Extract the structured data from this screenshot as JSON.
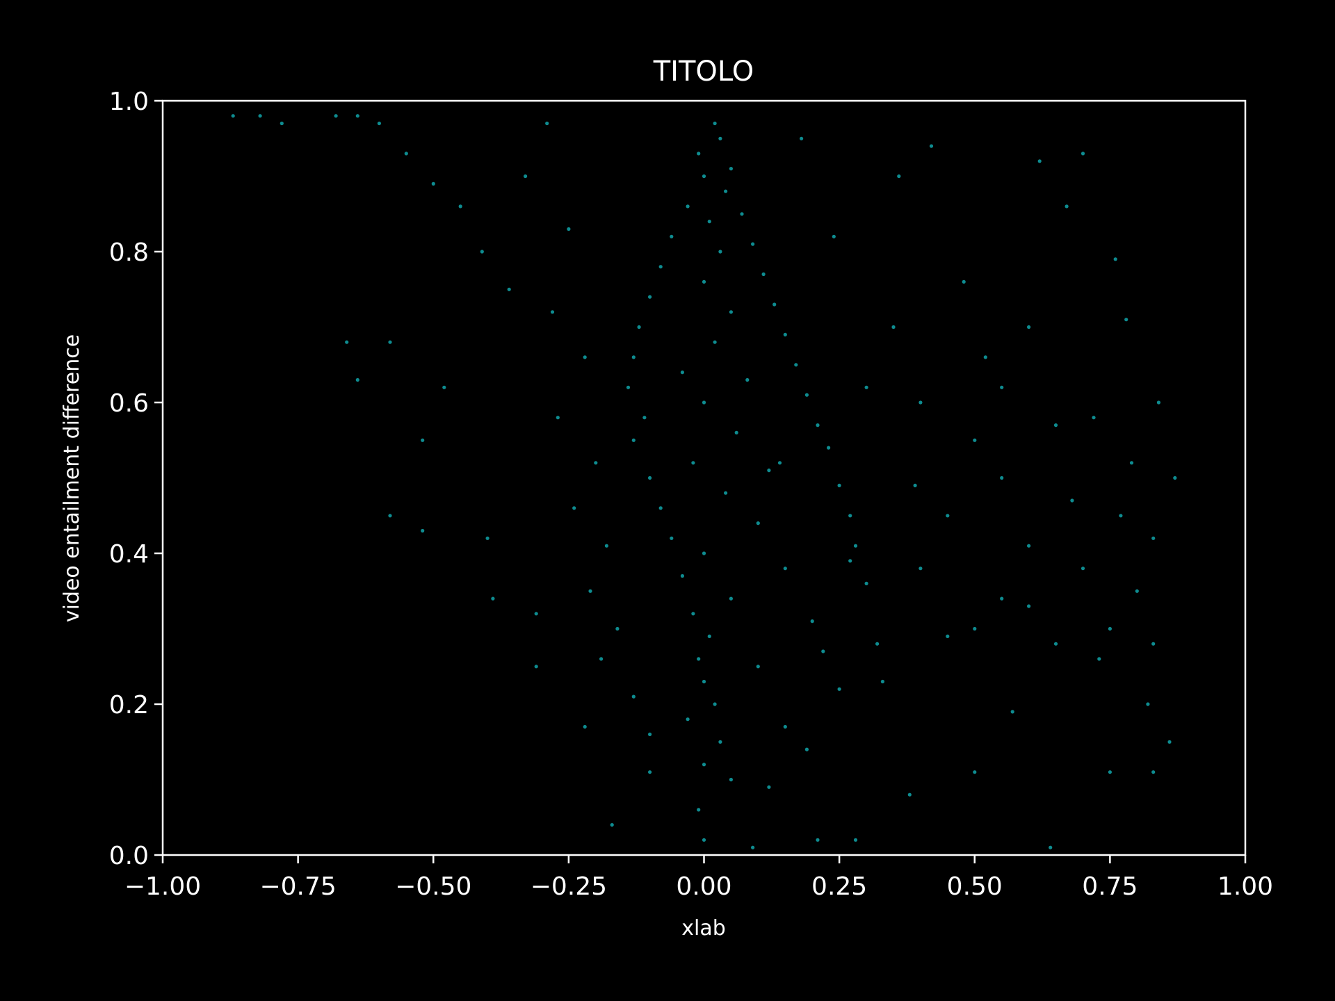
{
  "chart_data": {
    "type": "scatter",
    "title": "TITOLO",
    "xlabel": "xlab",
    "ylabel": "video entailment difference",
    "xlim": [
      -1.0,
      1.0
    ],
    "ylim": [
      0.0,
      1.0
    ],
    "xticks": [
      -1.0,
      -0.75,
      -0.5,
      -0.25,
      0.0,
      0.25,
      0.5,
      0.75,
      1.0
    ],
    "xtick_labels": [
      "−1.00",
      "−0.75",
      "−0.50",
      "−0.25",
      "0.00",
      "0.25",
      "0.50",
      "0.75",
      "1.00"
    ],
    "yticks": [
      0.0,
      0.2,
      0.4,
      0.6,
      0.8,
      1.0
    ],
    "ytick_labels": [
      "0.0",
      "0.2",
      "0.4",
      "0.6",
      "0.8",
      "1.0"
    ],
    "grid": false,
    "legend": "none",
    "colors": {
      "background": "#000000",
      "axes": "#ffffff",
      "text": "#ffffff",
      "points": "#0e8c90"
    },
    "series": [
      {
        "points": [
          [
            0.02,
            0.97
          ],
          [
            0.03,
            0.95
          ],
          [
            -0.01,
            0.93
          ],
          [
            0.05,
            0.91
          ],
          [
            0.0,
            0.9
          ],
          [
            0.04,
            0.88
          ],
          [
            -0.03,
            0.86
          ],
          [
            0.07,
            0.85
          ],
          [
            0.01,
            0.84
          ],
          [
            -0.06,
            0.82
          ],
          [
            0.09,
            0.81
          ],
          [
            0.03,
            0.8
          ],
          [
            -0.08,
            0.78
          ],
          [
            0.11,
            0.77
          ],
          [
            0.0,
            0.76
          ],
          [
            -0.1,
            0.74
          ],
          [
            0.13,
            0.73
          ],
          [
            0.05,
            0.72
          ],
          [
            -0.12,
            0.7
          ],
          [
            0.15,
            0.69
          ],
          [
            0.02,
            0.68
          ],
          [
            -0.13,
            0.66
          ],
          [
            0.17,
            0.65
          ],
          [
            -0.04,
            0.64
          ],
          [
            0.08,
            0.63
          ],
          [
            -0.14,
            0.62
          ],
          [
            0.19,
            0.61
          ],
          [
            0.0,
            0.6
          ],
          [
            -0.11,
            0.58
          ],
          [
            0.21,
            0.57
          ],
          [
            0.06,
            0.56
          ],
          [
            -0.13,
            0.55
          ],
          [
            0.23,
            0.54
          ],
          [
            -0.02,
            0.52
          ],
          [
            0.12,
            0.51
          ],
          [
            -0.1,
            0.5
          ],
          [
            0.25,
            0.49
          ],
          [
            0.04,
            0.48
          ],
          [
            -0.08,
            0.46
          ],
          [
            0.27,
            0.45
          ],
          [
            0.1,
            0.44
          ],
          [
            -0.06,
            0.42
          ],
          [
            0.28,
            0.41
          ],
          [
            0.0,
            0.4
          ],
          [
            0.15,
            0.38
          ],
          [
            -0.04,
            0.37
          ],
          [
            0.3,
            0.36
          ],
          [
            0.05,
            0.34
          ],
          [
            -0.02,
            0.32
          ],
          [
            0.2,
            0.31
          ],
          [
            0.01,
            0.29
          ],
          [
            0.32,
            0.28
          ],
          [
            -0.01,
            0.26
          ],
          [
            0.1,
            0.25
          ],
          [
            0.0,
            0.23
          ],
          [
            0.25,
            0.22
          ],
          [
            0.02,
            0.2
          ],
          [
            -0.03,
            0.18
          ],
          [
            0.15,
            0.17
          ],
          [
            0.03,
            0.15
          ],
          [
            0.0,
            0.12
          ],
          [
            0.05,
            0.1
          ],
          [
            -0.01,
            0.06
          ],
          [
            0.0,
            0.02
          ],
          [
            -0.87,
            0.98
          ],
          [
            -0.82,
            0.98
          ],
          [
            -0.78,
            0.97
          ],
          [
            -0.68,
            0.98
          ],
          [
            -0.64,
            0.98
          ],
          [
            -0.6,
            0.97
          ],
          [
            -0.55,
            0.93
          ],
          [
            -0.5,
            0.89
          ],
          [
            -0.45,
            0.86
          ],
          [
            -0.41,
            0.8
          ],
          [
            -0.36,
            0.75
          ],
          [
            -0.66,
            0.68
          ],
          [
            -0.64,
            0.63
          ],
          [
            -0.58,
            0.68
          ],
          [
            -0.52,
            0.55
          ],
          [
            -0.48,
            0.62
          ],
          [
            -0.52,
            0.43
          ],
          [
            -0.58,
            0.45
          ],
          [
            -0.4,
            0.42
          ],
          [
            -0.39,
            0.34
          ],
          [
            -0.31,
            0.32
          ],
          [
            -0.31,
            0.25
          ],
          [
            -0.22,
            0.17
          ],
          [
            -0.17,
            0.04
          ],
          [
            -0.29,
            0.97
          ],
          [
            -0.33,
            0.9
          ],
          [
            -0.25,
            0.83
          ],
          [
            -0.28,
            0.72
          ],
          [
            -0.22,
            0.66
          ],
          [
            -0.27,
            0.58
          ],
          [
            -0.2,
            0.52
          ],
          [
            -0.24,
            0.46
          ],
          [
            -0.18,
            0.41
          ],
          [
            -0.21,
            0.35
          ],
          [
            -0.16,
            0.3
          ],
          [
            -0.19,
            0.26
          ],
          [
            -0.13,
            0.21
          ],
          [
            -0.1,
            0.16
          ],
          [
            -0.1,
            0.11
          ],
          [
            0.09,
            0.01
          ],
          [
            0.21,
            0.02
          ],
          [
            0.28,
            0.02
          ],
          [
            0.38,
            0.08
          ],
          [
            0.5,
            0.11
          ],
          [
            0.64,
            0.01
          ],
          [
            0.75,
            0.11
          ],
          [
            0.83,
            0.11
          ],
          [
            0.86,
            0.15
          ],
          [
            0.87,
            0.5
          ],
          [
            0.84,
            0.6
          ],
          [
            0.83,
            0.42
          ],
          [
            0.83,
            0.28
          ],
          [
            0.82,
            0.2
          ],
          [
            0.8,
            0.35
          ],
          [
            0.79,
            0.52
          ],
          [
            0.78,
            0.71
          ],
          [
            0.76,
            0.79
          ],
          [
            0.73,
            0.26
          ],
          [
            0.7,
            0.93
          ],
          [
            0.67,
            0.86
          ],
          [
            0.65,
            0.57
          ],
          [
            0.62,
            0.92
          ],
          [
            0.6,
            0.41
          ],
          [
            0.57,
            0.19
          ],
          [
            0.55,
            0.34
          ],
          [
            0.52,
            0.66
          ],
          [
            0.48,
            0.76
          ],
          [
            0.45,
            0.29
          ],
          [
            0.42,
            0.94
          ],
          [
            0.39,
            0.49
          ],
          [
            0.36,
            0.9
          ],
          [
            0.33,
            0.23
          ],
          [
            0.3,
            0.62
          ],
          [
            0.27,
            0.39
          ],
          [
            0.24,
            0.82
          ],
          [
            0.22,
            0.27
          ],
          [
            0.19,
            0.14
          ],
          [
            0.18,
            0.95
          ],
          [
            0.14,
            0.52
          ],
          [
            0.12,
            0.09
          ],
          [
            0.4,
            0.6
          ],
          [
            0.45,
            0.45
          ],
          [
            0.5,
            0.55
          ],
          [
            0.55,
            0.5
          ],
          [
            0.6,
            0.33
          ],
          [
            0.65,
            0.28
          ],
          [
            0.7,
            0.38
          ],
          [
            0.75,
            0.3
          ],
          [
            0.35,
            0.7
          ],
          [
            0.4,
            0.38
          ],
          [
            0.5,
            0.3
          ],
          [
            0.55,
            0.62
          ],
          [
            0.6,
            0.7
          ],
          [
            0.68,
            0.47
          ],
          [
            0.72,
            0.58
          ],
          [
            0.77,
            0.45
          ]
        ]
      }
    ]
  }
}
